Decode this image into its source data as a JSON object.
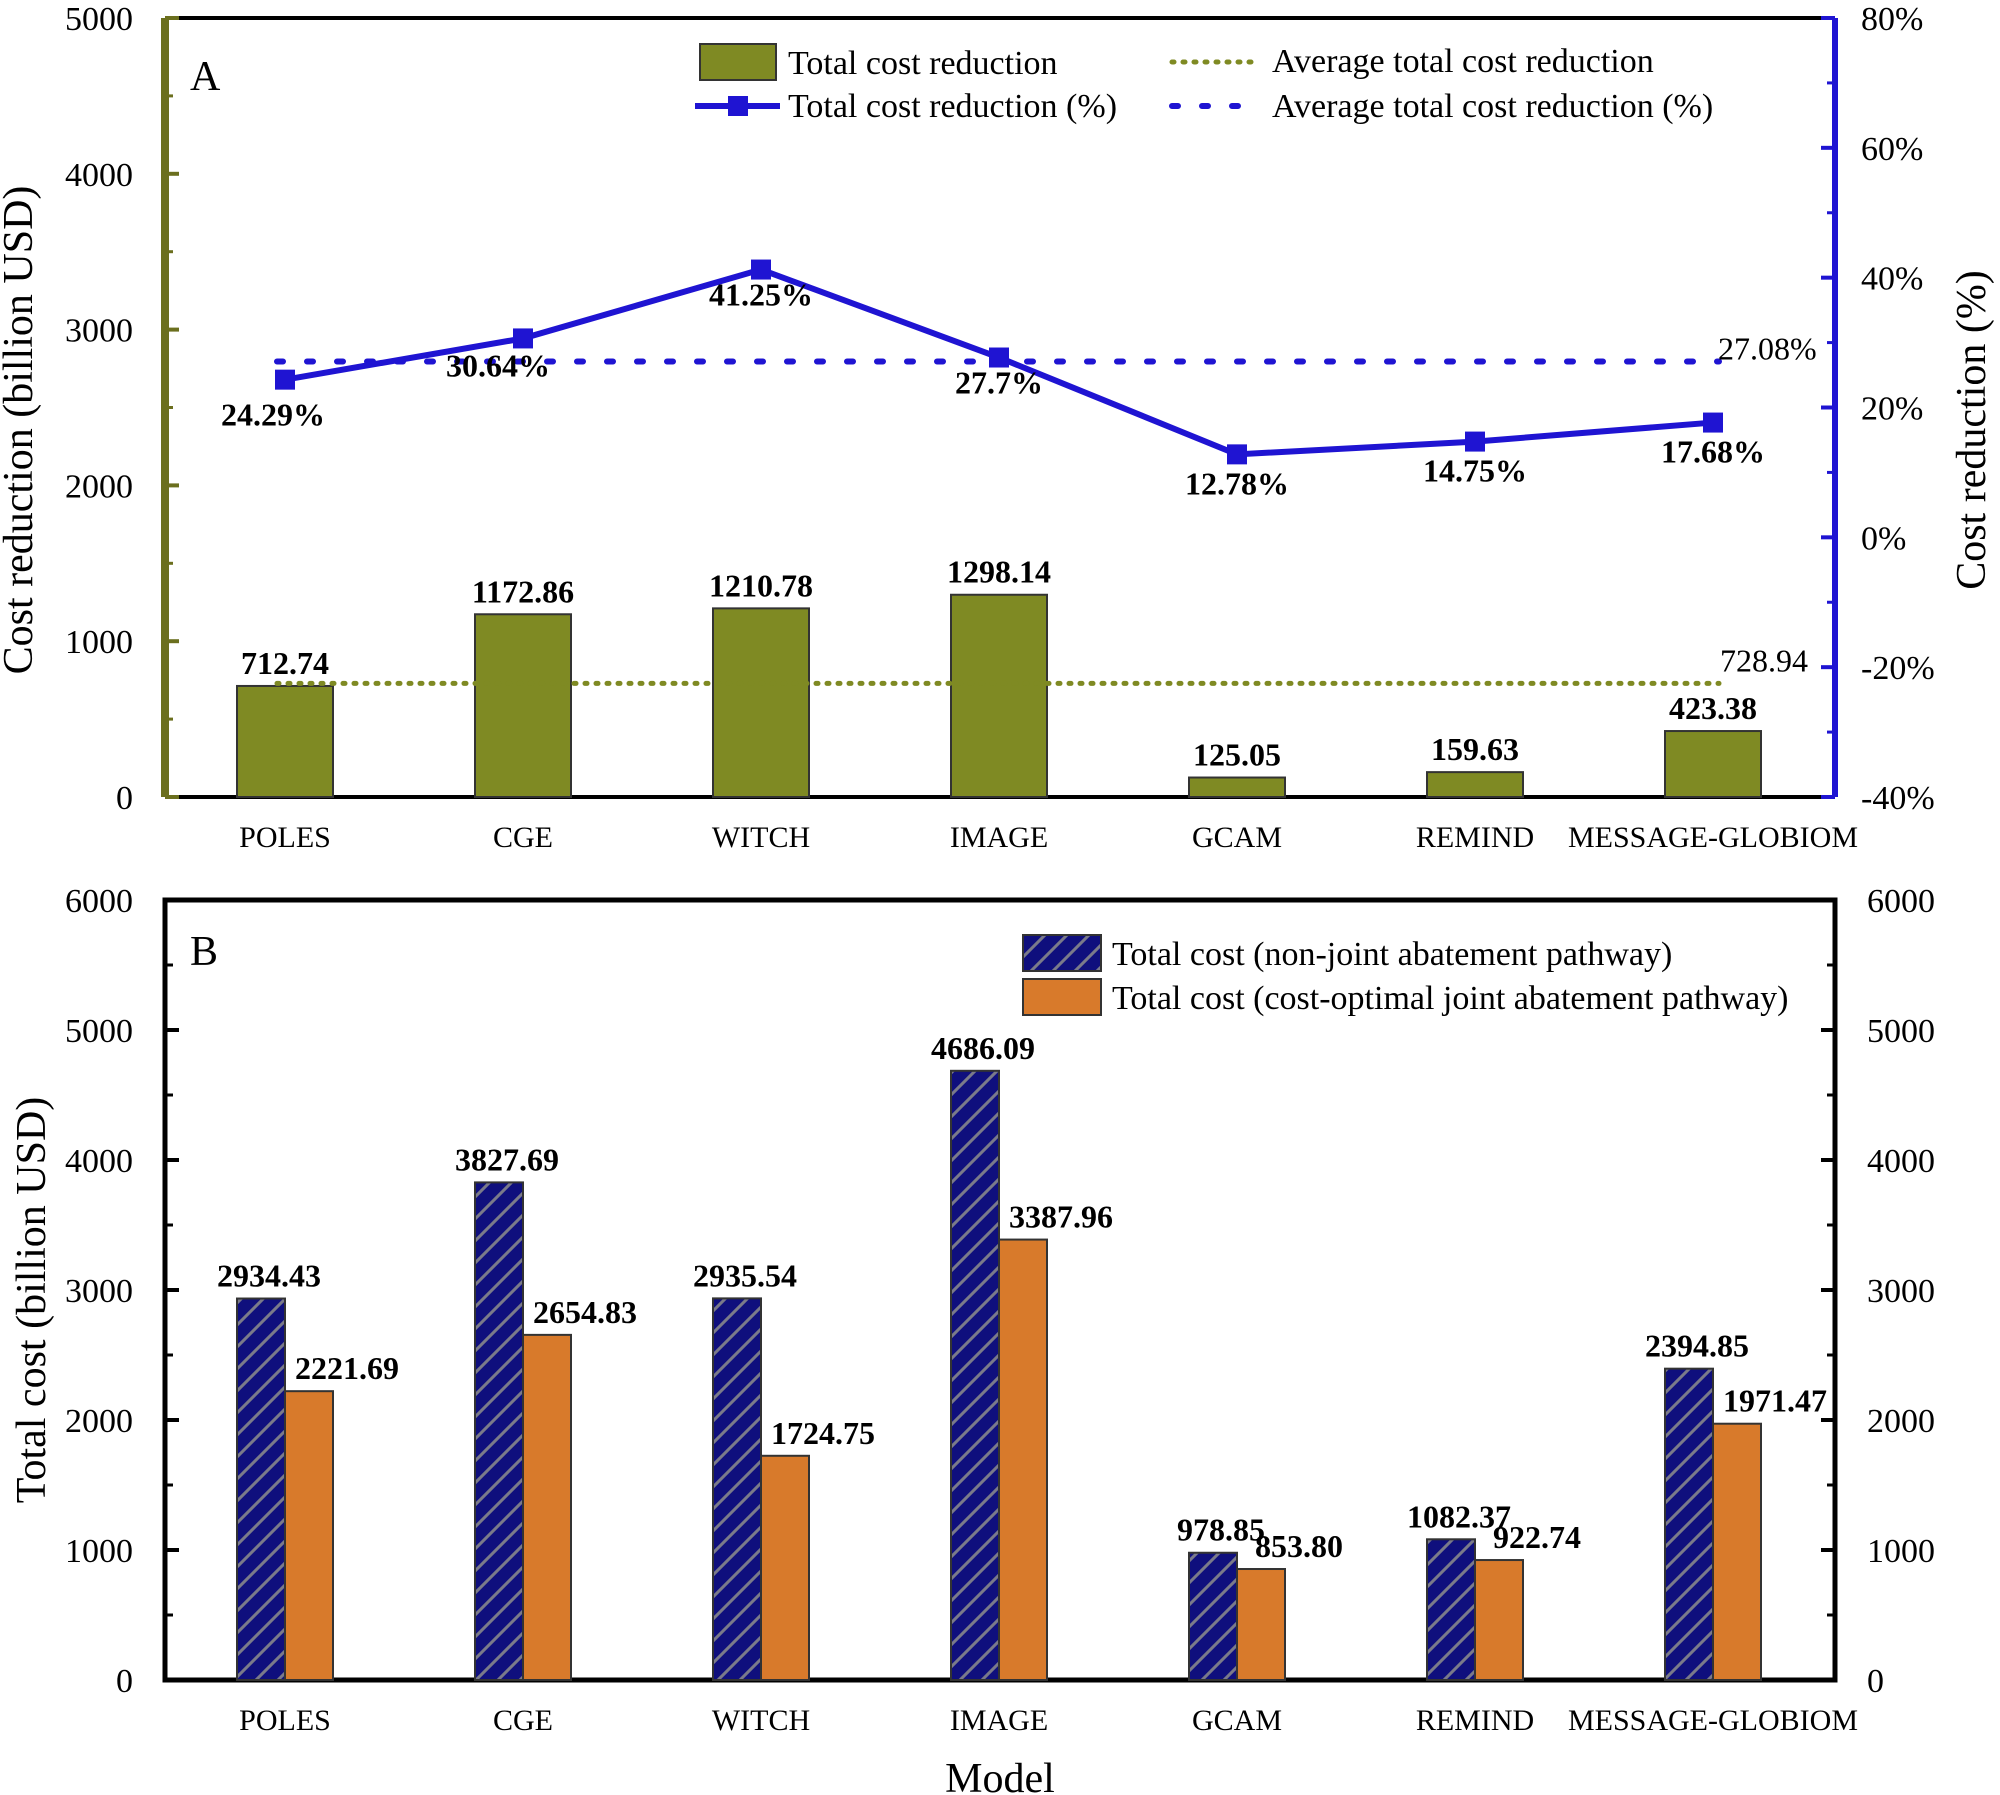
{
  "colors": {
    "olive": "#7F8A23",
    "olive_axis": "#6B6F1E",
    "blue_line": "#1F14D2",
    "navy_bar": "#0F0F7D",
    "orange_bar": "#D87A2B"
  },
  "chart_data": [
    {
      "panel": "A",
      "type": "bar+line",
      "categories": [
        "POLES",
        "CGE",
        "WITCH",
        "IMAGE",
        "GCAM",
        "REMIND",
        "MESSAGE-GLOBIOM"
      ],
      "series": [
        {
          "name": "Total cost reduction",
          "type": "bar",
          "axis": "left",
          "values": [
            712.74,
            1172.86,
            1210.78,
            1298.14,
            125.05,
            159.63,
            423.38
          ],
          "labels": [
            "712.74",
            "1172.86",
            "1210.78",
            "1298.14",
            "125.05",
            "159.63",
            "423.38"
          ]
        },
        {
          "name": "Total cost reduction (%)",
          "type": "line",
          "axis": "right",
          "values": [
            24.29,
            30.64,
            41.25,
            27.7,
            12.78,
            14.75,
            17.68
          ],
          "labels": [
            "24.29%",
            "30.64%",
            "41.25%",
            "27.7%",
            "12.78%",
            "14.75%",
            "17.68%"
          ]
        }
      ],
      "averages": [
        {
          "name": "Average total cost reduction",
          "axis": "left",
          "value": 728.94,
          "label": "728.94"
        },
        {
          "name": "Average total cost reduction (%)",
          "axis": "right",
          "value": 27.08,
          "label": "27.08%"
        }
      ],
      "ylabel": "Cost reduction (billion USD)",
      "ylabel_right": "Cost reduction (%)",
      "ylim": [
        0,
        5000
      ],
      "yticks": [
        0,
        1000,
        2000,
        3000,
        4000,
        5000
      ],
      "ylim_right": [
        -40,
        80
      ],
      "yticks_right": [
        -40,
        -20,
        0,
        20,
        40,
        60,
        80
      ],
      "yticks_right_labels": [
        "-40%",
        "-20%",
        "0%",
        "20%",
        "40%",
        "60%",
        "80%"
      ],
      "legend": [
        "Total cost reduction",
        "Total cost reduction (%)",
        "Average total cost reduction",
        "Average total cost reduction (%)"
      ]
    },
    {
      "panel": "B",
      "type": "bar",
      "categories": [
        "POLES",
        "CGE",
        "WITCH",
        "IMAGE",
        "GCAM",
        "REMIND",
        "MESSAGE-GLOBIOM"
      ],
      "series": [
        {
          "name": "Total cost (non-joint abatement pathway)",
          "values": [
            2934.43,
            3827.69,
            2935.54,
            4686.09,
            978.85,
            1082.37,
            2394.85
          ],
          "labels": [
            "2934.43",
            "3827.69",
            "2935.54",
            "4686.09",
            "978.85",
            "1082.37",
            "2394.85"
          ]
        },
        {
          "name": "Total cost (cost-optimal joint abatement pathway)",
          "values": [
            2221.69,
            2654.83,
            1724.75,
            3387.96,
            853.8,
            922.74,
            1971.47
          ],
          "labels": [
            "2221.69",
            "2654.83",
            "1724.75",
            "3387.96",
            "853.80",
            "922.74",
            "1971.47"
          ]
        }
      ],
      "xlabel": "Model",
      "ylabel": "Total cost (billion USD)",
      "ylim": [
        0,
        6000
      ],
      "yticks": [
        0,
        1000,
        2000,
        3000,
        4000,
        5000,
        6000
      ],
      "legend": [
        "Total cost (non-joint abatement pathway)",
        "Total cost (cost-optimal joint abatement pathway)"
      ]
    }
  ]
}
